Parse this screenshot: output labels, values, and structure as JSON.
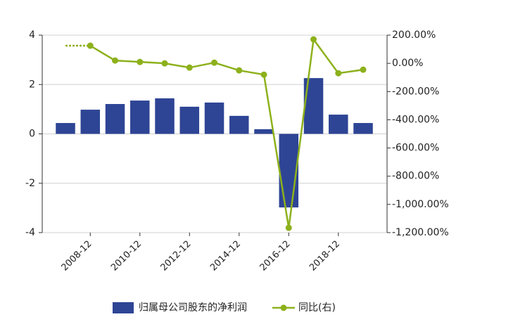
{
  "chart_data": {
    "type": "bar-line",
    "categories": [
      null,
      "2008-12",
      null,
      "2010-12",
      null,
      "2012-12",
      null,
      "2014-12",
      null,
      "2016-12",
      null,
      "2018-12",
      null
    ],
    "series": [
      {
        "name": "归属母公司股东的净利润",
        "color": "#2e4595",
        "type": "bar",
        "values": [
          0.44,
          0.98,
          1.21,
          1.35,
          1.44,
          1.1,
          1.27,
          0.73,
          0.19,
          -2.98,
          2.26,
          0.78,
          0.44
        ]
      },
      {
        "name": "同比(右)",
        "color": "#8db11c",
        "type": "line",
        "axis": "y2",
        "values": [
          null,
          125,
          20,
          10,
          0,
          -30,
          5,
          -50,
          -80,
          -1166,
          170,
          -70,
          -45
        ]
      }
    ],
    "ylim": [
      -4,
      4
    ],
    "yticks": [
      -4,
      -2,
      0,
      2,
      4
    ],
    "y2lim": [
      -1200,
      200
    ],
    "y2ticks": [
      {
        "value": -1200,
        "label": "-1,200.00%"
      },
      {
        "value": -1000,
        "label": "-1,000.00%"
      },
      {
        "value": -800,
        "label": "-800.00%"
      },
      {
        "value": -600,
        "label": "-600.00%"
      },
      {
        "value": -400,
        "label": "-400.00%"
      },
      {
        "value": -200,
        "label": "-200.00%"
      },
      {
        "value": 0,
        "label": "0.00%"
      },
      {
        "value": 200,
        "label": "200.00%"
      }
    ],
    "grid": true
  }
}
